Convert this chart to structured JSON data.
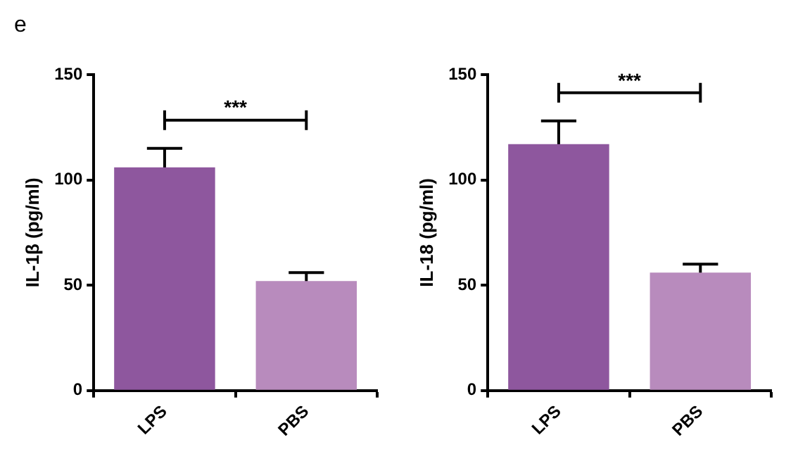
{
  "chart_data": [
    {
      "type": "bar",
      "title": "e",
      "ylabel": "IL-1β (pg/ml)",
      "categories": [
        "LPS",
        "PBS"
      ],
      "values": [
        106,
        52
      ],
      "errors": [
        9,
        4
      ],
      "colors": [
        "#8e579e",
        "#b88bbd"
      ],
      "ylim": [
        0,
        150
      ],
      "yticks": [
        0,
        50,
        100,
        150
      ],
      "grid": false,
      "legend": false,
      "annotations": [
        "***"
      ]
    },
    {
      "type": "bar",
      "ylabel": "IL-18 (pg/ml)",
      "categories": [
        "LPS",
        "PBS"
      ],
      "values": [
        117,
        56
      ],
      "errors": [
        11,
        4
      ],
      "colors": [
        "#8e579e",
        "#b88bbd"
      ],
      "ylim": [
        0,
        150
      ],
      "yticks": [
        0,
        50,
        100,
        150
      ],
      "grid": false,
      "legend": false,
      "annotations": [
        "***"
      ]
    }
  ]
}
